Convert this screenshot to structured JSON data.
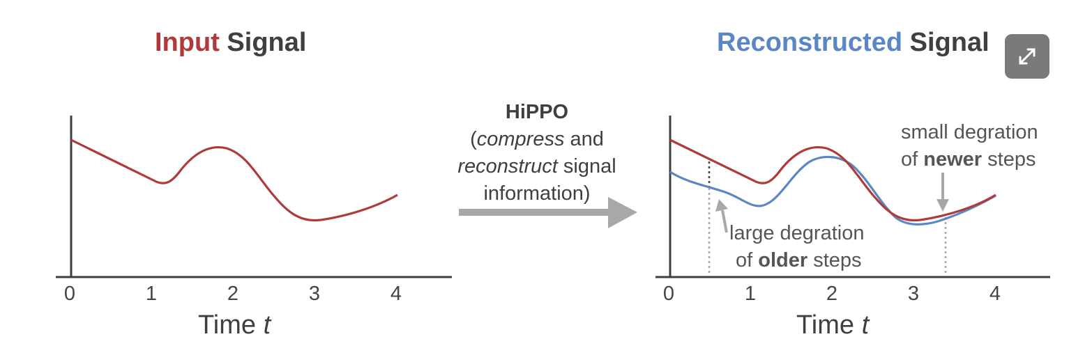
{
  "left_title": {
    "accent": "Input",
    "rest": " Signal"
  },
  "right_title": {
    "accent": "Reconstructed",
    "rest": " Signal"
  },
  "middle": {
    "hippo": "HiPPO",
    "line2_open": "(",
    "line2_em": "compress",
    "line2_rest": " and",
    "line3_em": "reconstruct",
    "line3_rest": " signal",
    "line4": "information)"
  },
  "annotations": {
    "small_line1": "small degration",
    "small_of": "of ",
    "small_bold": "newer",
    "small_rest": " steps",
    "large_line1": "large degration",
    "large_of": "of ",
    "large_bold": "older",
    "large_rest": " steps"
  },
  "axes": {
    "ticks": [
      "0",
      "1",
      "2",
      "3",
      "4"
    ],
    "xlabel_prefix": "Time ",
    "xlabel_var": "t"
  },
  "colors": {
    "input": "#b03a3a",
    "reconstructed": "#5b86c5",
    "arrow": "#a8a8a8",
    "axis": "#3f3f3f"
  },
  "icons": {
    "expand": "expand-icon"
  }
}
